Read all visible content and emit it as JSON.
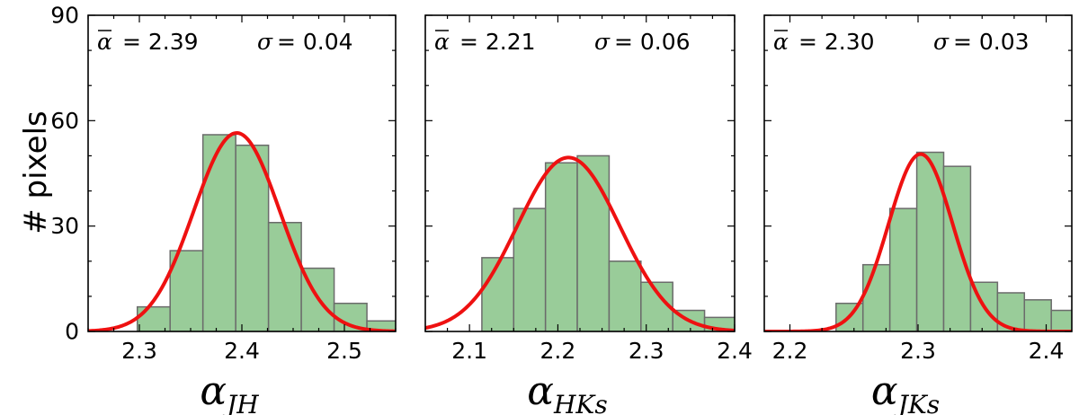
{
  "chart_data": {
    "type": "bar",
    "ylabel": "# pixels",
    "ylim": [
      0,
      90
    ],
    "yticks": [
      0,
      30,
      60,
      90
    ],
    "panels": [
      {
        "xlabel_main": "α",
        "xlabel_sub": "JH",
        "xlim": [
          2.25,
          2.55
        ],
        "xticks": [
          "2.3",
          "2.4",
          "2.5"
        ],
        "xtick_values": [
          2.3,
          2.4,
          2.5
        ],
        "stats": {
          "mean_symbol": "α",
          "mean_text": "= 2.39",
          "sigma_symbol": "σ",
          "sigma_text": "=  0.04"
        },
        "fit": {
          "mean": 2.395,
          "sigma": 0.042,
          "peak": 56.5
        },
        "bins": [
          {
            "x0": 2.298,
            "x1": 2.33,
            "count": 7
          },
          {
            "x0": 2.33,
            "x1": 2.362,
            "count": 23
          },
          {
            "x0": 2.362,
            "x1": 2.394,
            "count": 56
          },
          {
            "x0": 2.394,
            "x1": 2.426,
            "count": 53
          },
          {
            "x0": 2.426,
            "x1": 2.458,
            "count": 31
          },
          {
            "x0": 2.458,
            "x1": 2.49,
            "count": 18
          },
          {
            "x0": 2.49,
            "x1": 2.522,
            "count": 8
          },
          {
            "x0": 2.522,
            "x1": 2.554,
            "count": 3
          }
        ]
      },
      {
        "xlabel_main": "α",
        "xlabel_sub": "HKs",
        "xlim": [
          2.05,
          2.4
        ],
        "xticks": [
          "2.1",
          "2.2",
          "2.3",
          "2.4"
        ],
        "xtick_values": [
          2.1,
          2.2,
          2.3,
          2.4
        ],
        "stats": {
          "mean_symbol": "α",
          "mean_text": "= 2.21",
          "sigma_symbol": "σ",
          "sigma_text": "=  0.06"
        },
        "fit": {
          "mean": 2.212,
          "sigma": 0.058,
          "peak": 49.5
        },
        "bins": [
          {
            "x0": 2.114,
            "x1": 2.15,
            "count": 21
          },
          {
            "x0": 2.15,
            "x1": 2.186,
            "count": 35
          },
          {
            "x0": 2.186,
            "x1": 2.222,
            "count": 48
          },
          {
            "x0": 2.222,
            "x1": 2.258,
            "count": 50
          },
          {
            "x0": 2.258,
            "x1": 2.294,
            "count": 20
          },
          {
            "x0": 2.294,
            "x1": 2.33,
            "count": 14
          },
          {
            "x0": 2.33,
            "x1": 2.366,
            "count": 6
          },
          {
            "x0": 2.366,
            "x1": 2.402,
            "count": 4
          }
        ]
      },
      {
        "xlabel_main": "α",
        "xlabel_sub": "JKs",
        "xlim": [
          2.18,
          2.42
        ],
        "xticks": [
          "2.2",
          "2.3",
          "2.4"
        ],
        "xtick_values": [
          2.2,
          2.3,
          2.4
        ],
        "stats": {
          "mean_symbol": "α",
          "mean_text": "= 2.30",
          "sigma_symbol": "σ",
          "sigma_text": "=  0.03"
        },
        "fit": {
          "mean": 2.302,
          "sigma": 0.025,
          "peak": 50.5
        },
        "bins": [
          {
            "x0": 2.236,
            "x1": 2.257,
            "count": 8
          },
          {
            "x0": 2.257,
            "x1": 2.278,
            "count": 19
          },
          {
            "x0": 2.278,
            "x1": 2.299,
            "count": 35
          },
          {
            "x0": 2.299,
            "x1": 2.32,
            "count": 51
          },
          {
            "x0": 2.32,
            "x1": 2.341,
            "count": 47
          },
          {
            "x0": 2.341,
            "x1": 2.362,
            "count": 14
          },
          {
            "x0": 2.362,
            "x1": 2.383,
            "count": 11
          },
          {
            "x0": 2.383,
            "x1": 2.404,
            "count": 9
          },
          {
            "x0": 2.404,
            "x1": 2.425,
            "count": 6
          }
        ]
      }
    ]
  }
}
